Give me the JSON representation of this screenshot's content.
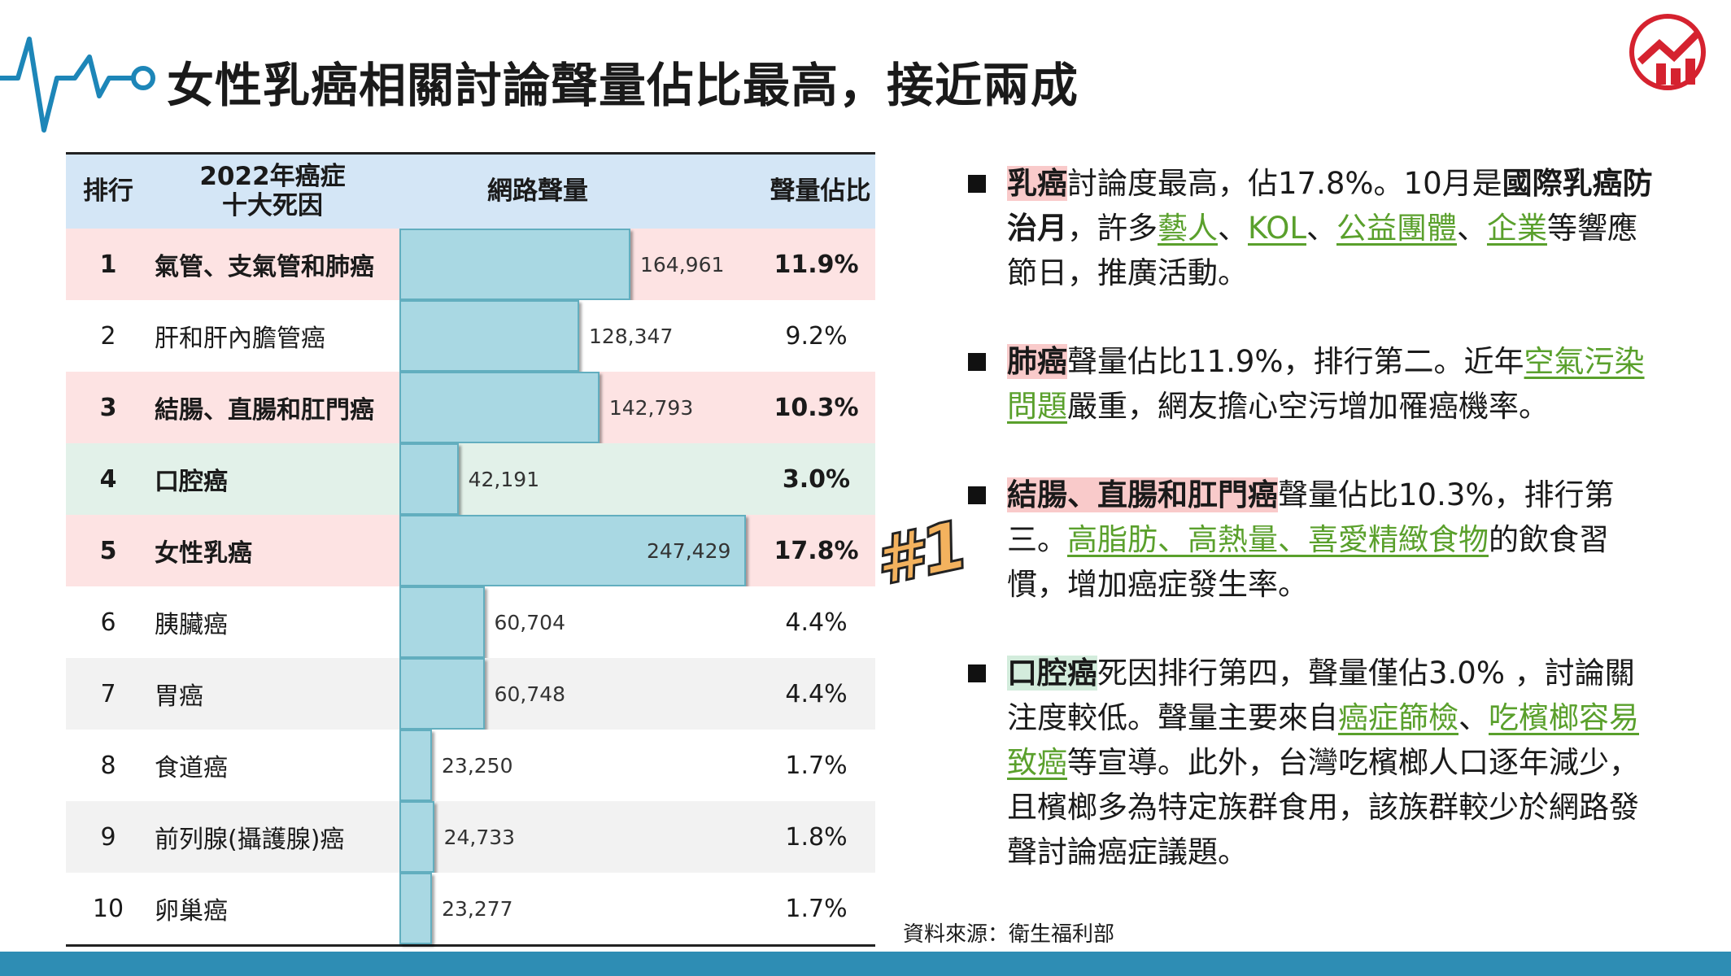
{
  "header": {
    "title": "女性乳癌相關討論聲量佔比最高，接近兩成"
  },
  "table": {
    "columns": [
      "排行",
      "2022年癌症\n十大死因",
      "網路聲量",
      "聲量佔比"
    ],
    "rows": [
      {
        "rank": 1,
        "name": "氣管、支氣管和肺癌",
        "volume": 164961,
        "volume_label": "164,961",
        "share": "11.9%",
        "bold": true,
        "fill": "#fde3e3"
      },
      {
        "rank": 2,
        "name": "肝和肝內膽管癌",
        "volume": 128347,
        "volume_label": "128,347",
        "share": "9.2%",
        "bold": false,
        "fill": "#ffffff"
      },
      {
        "rank": 3,
        "name": "結腸、直腸和肛門癌",
        "volume": 142793,
        "volume_label": "142,793",
        "share": "10.3%",
        "bold": true,
        "fill": "#fde3e3"
      },
      {
        "rank": 4,
        "name": "口腔癌",
        "volume": 42191,
        "volume_label": "42,191",
        "share": "3.0%",
        "bold": true,
        "fill": "#e2f1e9"
      },
      {
        "rank": 5,
        "name": "女性乳癌",
        "volume": 247429,
        "volume_label": "247,429",
        "share": "17.8%",
        "bold": true,
        "fill": "#fde3e3"
      },
      {
        "rank": 6,
        "name": "胰臟癌",
        "volume": 60704,
        "volume_label": "60,704",
        "share": "4.4%",
        "bold": false,
        "fill": "#ffffff"
      },
      {
        "rank": 7,
        "name": "胃癌",
        "volume": 60748,
        "volume_label": "60,748",
        "share": "4.4%",
        "bold": false,
        "fill": "#f2f2f2"
      },
      {
        "rank": 8,
        "name": "食道癌",
        "volume": 23250,
        "volume_label": "23,250",
        "share": "1.7%",
        "bold": false,
        "fill": "#ffffff"
      },
      {
        "rank": 9,
        "name": "前列腺(攝護腺)癌",
        "volume": 24733,
        "volume_label": "24,733",
        "share": "1.8%",
        "bold": false,
        "fill": "#f2f2f2"
      },
      {
        "rank": 10,
        "name": "卵巢癌",
        "volume": 23277,
        "volume_label": "23,277",
        "share": "1.7%",
        "bold": false,
        "fill": "#ffffff"
      }
    ]
  },
  "badge": "#1",
  "bullets": [
    {
      "segments": [
        {
          "text": "乳癌",
          "kind": "tag-pink"
        },
        {
          "text": "討論度最高，佔17.8%。10月是",
          "kind": "plain"
        },
        {
          "text": "國際乳癌防治月",
          "kind": "bold"
        },
        {
          "text": "，許多",
          "kind": "plain"
        },
        {
          "text": "藝人",
          "kind": "link"
        },
        {
          "text": "、",
          "kind": "plain"
        },
        {
          "text": "KOL",
          "kind": "link"
        },
        {
          "text": "、",
          "kind": "plain"
        },
        {
          "text": "公益團體",
          "kind": "link"
        },
        {
          "text": "、",
          "kind": "plain"
        },
        {
          "text": "企業",
          "kind": "link"
        },
        {
          "text": "等響應節日，推廣活動。",
          "kind": "plain"
        }
      ]
    },
    {
      "segments": [
        {
          "text": "肺癌",
          "kind": "tag-pink"
        },
        {
          "text": "聲量佔比11.9%，排行第二。近年",
          "kind": "plain"
        },
        {
          "text": "空氣污染問題",
          "kind": "link"
        },
        {
          "text": "嚴重，網友擔心空污增加罹癌機率。",
          "kind": "plain"
        }
      ]
    },
    {
      "segments": [
        {
          "text": "結腸、直腸和肛門癌",
          "kind": "tag-pink"
        },
        {
          "text": "聲量佔比10.3%，排行第三。",
          "kind": "plain"
        },
        {
          "text": "高脂肪、高熱量、喜愛精緻食物",
          "kind": "link"
        },
        {
          "text": "的飲食習慣，增加癌症發生率。",
          "kind": "plain"
        }
      ]
    },
    {
      "segments": [
        {
          "text": "口腔癌",
          "kind": "tag-green"
        },
        {
          "text": "死因排行第四，聲量僅佔3.0% ，討論關注度較低。聲量主要來自",
          "kind": "plain"
        },
        {
          "text": "癌症篩檢",
          "kind": "link"
        },
        {
          "text": "、",
          "kind": "plain"
        },
        {
          "text": "吃檳榔容易致癌",
          "kind": "link"
        },
        {
          "text": "等宣導。此外，台灣吃檳榔人口逐年減少，且檳榔多為特定族群食用，該族群較少於網路發聲討論癌症議題。",
          "kind": "plain"
        }
      ]
    }
  ],
  "source": "資料來源：衛生福利部"
}
